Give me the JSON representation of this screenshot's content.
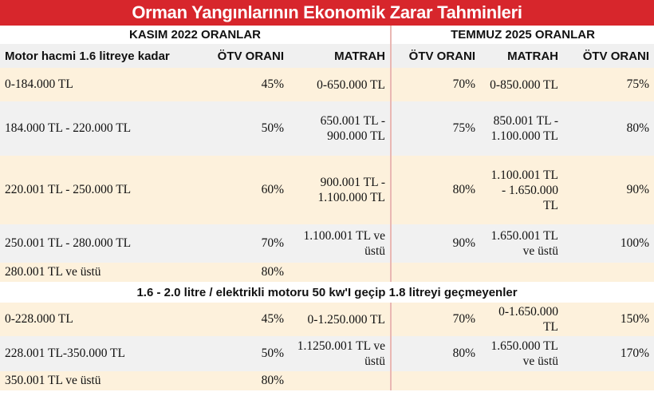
{
  "title": "Orman Yangınlarının Ekonomik Zarar Tahminleri",
  "section_headers": {
    "left": "KASIM 2022 ORANLAR",
    "right": "TEMMUZ 2025 ORANLAR"
  },
  "columns": [
    "Motor hacmi 1.6 litreye kadar",
    "ÖTV ORANI",
    "MATRAH",
    "ÖTV ORANI",
    "MATRAH",
    "ÖTV ORANI"
  ],
  "group1_rows": [
    [
      "0-184.000 TL",
      "45%",
      "0-650.000 TL",
      "70%",
      "0-850.000 TL",
      "75%"
    ],
    [
      "184.000 TL - 220.000 TL",
      "50%",
      "650.001 TL - 900.000 TL",
      "75%",
      "850.001 TL - 1.100.000 TL",
      "80%"
    ],
    [
      "220.001 TL - 250.000 TL",
      "60%",
      "900.001 TL - 1.100.000 TL",
      "80%",
      "1.100.001 TL - 1.650.000 TL",
      "90%"
    ],
    [
      "250.001 TL - 280.000 TL",
      "70%",
      "1.100.001 TL ve üstü",
      "90%",
      "1.650.001 TL ve üstü",
      "100%"
    ],
    [
      "280.001 TL ve üstü",
      "80%",
      "",
      "",
      "",
      ""
    ]
  ],
  "group2_header": "1.6 - 2.0 litre / elektrikli motoru 50 kw'I geçip 1.8 litreyi geçmeyenler",
  "group2_rows": [
    [
      "0-228.000 TL",
      "45%",
      "0-1.250.000 TL",
      "70%",
      "0-1.650.000 TL",
      "150%"
    ],
    [
      "228.001 TL-350.000 TL",
      "50%",
      "1.1250.001 TL ve üstü",
      "80%",
      "1.650.000 TL ve üstü",
      "170%"
    ],
    [
      "350.001 TL ve üstü",
      "80%",
      "",
      "",
      "",
      ""
    ]
  ]
}
